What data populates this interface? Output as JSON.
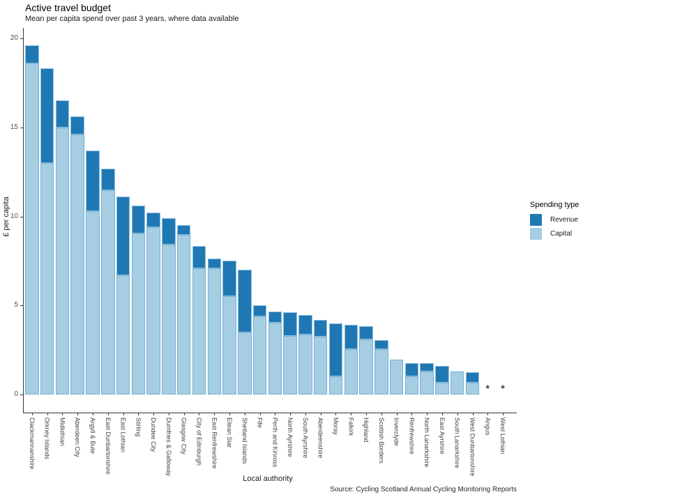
{
  "header": {
    "title": "Active travel budget",
    "subtitle": "Mean per capita spend over past 3 years, where data available"
  },
  "axes": {
    "y_label": "£ per capita",
    "x_label": "Local authority",
    "y_ticks": [
      0,
      5,
      10,
      15,
      20
    ]
  },
  "legend": {
    "title": "Spending type",
    "items": [
      {
        "label": "Revenue",
        "color": "#1f78b4"
      },
      {
        "label": "Capital",
        "color": "#a6cee3"
      }
    ]
  },
  "footer": {
    "source": "Source: Cycling Scotland Annual Cycling Monitoring Reports"
  },
  "no_data_marker": "*",
  "chart_data": {
    "type": "bar",
    "stacked": true,
    "title": "Active travel budget",
    "subtitle": "Mean per capita spend over past 3 years, where data available",
    "xlabel": "Local authority",
    "ylabel": "£ per capita",
    "ylim": [
      0,
      20
    ],
    "grid": false,
    "legend_position": "right",
    "categories": [
      "Clackmannanshire",
      "Orkney Islands",
      "Midlothian",
      "Aberdeen City",
      "Argyll & Bute",
      "East Dunbartonshire",
      "East Lothian",
      "Stirling",
      "Dundee City",
      "Dumfries & Galloway",
      "Glasgow City",
      "City of Edinburgh",
      "East Renfrewshire",
      "Eilean Siar",
      "Shetland Islands",
      "Fife",
      "Perth and Kinross",
      "North Ayrshire",
      "South Ayrshire",
      "Aberdeenshire",
      "Moray",
      "Falkirk",
      "Highland",
      "Scottish Borders",
      "Inverclyde",
      "Renfrewshire",
      "North Lanarkshire",
      "East Ayrshire",
      "South Lanarkshire",
      "West Dunbartonshire",
      "Angus",
      "West Lothian"
    ],
    "series": [
      {
        "name": "Revenue",
        "color": "#1f78b4",
        "values": [
          1.0,
          5.3,
          1.5,
          1.0,
          3.4,
          1.25,
          4.4,
          1.55,
          0.8,
          1.5,
          0.55,
          1.25,
          0.55,
          2.0,
          3.5,
          0.6,
          0.6,
          1.3,
          1.1,
          0.95,
          3.0,
          1.35,
          0.75,
          0.5,
          0.0,
          0.75,
          0.45,
          0.95,
          0.0,
          0.6,
          null,
          null
        ]
      },
      {
        "name": "Capital",
        "color": "#a6cee3",
        "values": [
          18.6,
          13.0,
          15.0,
          14.6,
          10.3,
          11.45,
          6.7,
          9.05,
          9.4,
          8.4,
          8.95,
          7.1,
          7.1,
          5.5,
          3.5,
          4.4,
          4.05,
          3.3,
          3.35,
          3.25,
          1.0,
          2.55,
          3.1,
          2.55,
          1.95,
          1.0,
          1.3,
          0.65,
          1.3,
          0.65,
          null,
          null
        ]
      }
    ],
    "no_data_categories": [
      "Angus",
      "West Lothian"
    ]
  }
}
